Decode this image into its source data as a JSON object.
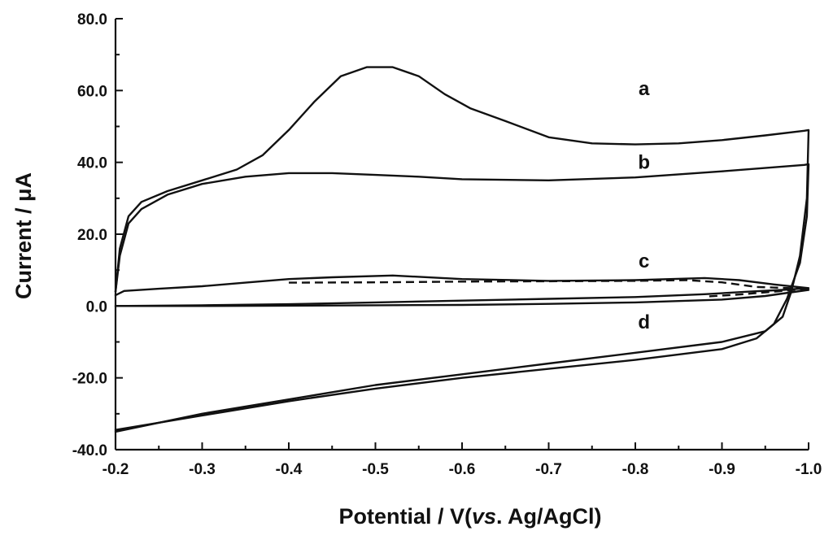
{
  "chart_data": {
    "type": "line",
    "xlabel_main": "Potential / V(",
    "xlabel_italic": "vs",
    "xlabel_tail": ". Ag/AgCl)",
    "ylabel": "Current / μA",
    "xlim": [
      -0.2,
      -1.0
    ],
    "ylim": [
      -40,
      80
    ],
    "x_ticks": [
      -0.2,
      -0.3,
      -0.4,
      -0.5,
      -0.6,
      -0.7,
      -0.8,
      -0.9,
      -1.0
    ],
    "x_tick_labels": [
      "-0.2",
      "-0.3",
      "-0.4",
      "-0.5",
      "-0.6",
      "-0.7",
      "-0.8",
      "-0.9",
      "-1.0"
    ],
    "y_ticks": [
      -40,
      -20,
      0,
      20,
      40,
      60,
      80
    ],
    "y_tick_labels": [
      "-40.0",
      "-20.0",
      "0.0",
      "20.0",
      "40.0",
      "60.0",
      "80.0"
    ],
    "y_minor_ticks": [
      -30,
      -10,
      10,
      30,
      50,
      70
    ],
    "grid": false,
    "legend": "none",
    "series": [
      {
        "name": "a",
        "label_at": [
          -0.81,
          60.5
        ],
        "style": "solid",
        "points": [
          [
            -0.2,
            4
          ],
          [
            -0.205,
            16
          ],
          [
            -0.215,
            25
          ],
          [
            -0.23,
            29
          ],
          [
            -0.26,
            32
          ],
          [
            -0.3,
            35
          ],
          [
            -0.34,
            38
          ],
          [
            -0.37,
            42
          ],
          [
            -0.4,
            49
          ],
          [
            -0.43,
            57
          ],
          [
            -0.46,
            64
          ],
          [
            -0.49,
            66.5
          ],
          [
            -0.52,
            66.5
          ],
          [
            -0.55,
            64
          ],
          [
            -0.58,
            59
          ],
          [
            -0.61,
            55
          ],
          [
            -0.65,
            51.5
          ],
          [
            -0.7,
            47
          ],
          [
            -0.75,
            45.3
          ],
          [
            -0.8,
            45
          ],
          [
            -0.85,
            45.3
          ],
          [
            -0.9,
            46.2
          ],
          [
            -0.95,
            47.5
          ],
          [
            -0.995,
            48.8
          ],
          [
            -1.0,
            49
          ],
          [
            -0.998,
            30
          ],
          [
            -0.99,
            14
          ],
          [
            -0.98,
            4
          ],
          [
            -0.97,
            -3
          ],
          [
            -0.95,
            -7
          ],
          [
            -0.9,
            -10
          ],
          [
            -0.8,
            -13
          ],
          [
            -0.7,
            -16
          ],
          [
            -0.6,
            -19
          ],
          [
            -0.5,
            -22
          ],
          [
            -0.4,
            -26
          ],
          [
            -0.3,
            -30
          ],
          [
            -0.2,
            -35
          ]
        ]
      },
      {
        "name": "b",
        "label_at": [
          -0.81,
          40.0
        ],
        "style": "solid",
        "points": [
          [
            -0.2,
            4
          ],
          [
            -0.205,
            14
          ],
          [
            -0.215,
            23
          ],
          [
            -0.23,
            27
          ],
          [
            -0.26,
            31
          ],
          [
            -0.3,
            34
          ],
          [
            -0.35,
            36
          ],
          [
            -0.4,
            37
          ],
          [
            -0.45,
            37
          ],
          [
            -0.5,
            36.5
          ],
          [
            -0.55,
            36
          ],
          [
            -0.6,
            35.3
          ],
          [
            -0.7,
            35
          ],
          [
            -0.8,
            35.8
          ],
          [
            -0.9,
            37.5
          ],
          [
            -0.995,
            39.3
          ],
          [
            -1.0,
            39.5
          ],
          [
            -0.998,
            25
          ],
          [
            -0.99,
            12
          ],
          [
            -0.975,
            2
          ],
          [
            -0.96,
            -5
          ],
          [
            -0.94,
            -9
          ],
          [
            -0.9,
            -12
          ],
          [
            -0.8,
            -15
          ],
          [
            -0.7,
            -17.5
          ],
          [
            -0.6,
            -20
          ],
          [
            -0.5,
            -23
          ],
          [
            -0.4,
            -26.5
          ],
          [
            -0.3,
            -30.5
          ],
          [
            -0.2,
            -34.5
          ]
        ]
      },
      {
        "name": "c",
        "label_at": [
          -0.81,
          12.5
        ],
        "style": "solid",
        "points": [
          [
            -0.2,
            3
          ],
          [
            -0.21,
            4.2
          ],
          [
            -0.25,
            4.8
          ],
          [
            -0.3,
            5.5
          ],
          [
            -0.35,
            6.5
          ],
          [
            -0.4,
            7.5
          ],
          [
            -0.45,
            8
          ],
          [
            -0.52,
            8.5
          ],
          [
            -0.6,
            7.5
          ],
          [
            -0.7,
            7
          ],
          [
            -0.8,
            7.2
          ],
          [
            -0.88,
            7.8
          ],
          [
            -0.92,
            7.2
          ],
          [
            -0.96,
            6
          ],
          [
            -1.0,
            5
          ],
          [
            -0.97,
            4.5
          ],
          [
            -0.93,
            4
          ],
          [
            -0.88,
            3.3
          ],
          [
            -0.8,
            2.5
          ],
          [
            -0.7,
            2
          ],
          [
            -0.6,
            1.5
          ],
          [
            -0.5,
            1
          ],
          [
            -0.4,
            0.5
          ],
          [
            -0.3,
            0.2
          ],
          [
            -0.2,
            0
          ]
        ]
      },
      {
        "name": "c-dashed",
        "style": "dashed",
        "points": [
          [
            -0.4,
            6.5
          ],
          [
            -0.5,
            6.6
          ],
          [
            -0.6,
            6.8
          ],
          [
            -0.7,
            6.9
          ],
          [
            -0.8,
            7
          ],
          [
            -0.86,
            7.2
          ],
          [
            -0.9,
            6.6
          ],
          [
            -0.94,
            5.3
          ],
          [
            -1.0,
            4.8
          ],
          [
            -0.96,
            4
          ],
          [
            -0.92,
            3.2
          ],
          [
            -0.88,
            2.6
          ]
        ]
      },
      {
        "name": "d",
        "label_at": [
          -0.81,
          -4.5
        ],
        "style": "solid",
        "points": [
          [
            -0.2,
            0
          ],
          [
            -0.3,
            0
          ],
          [
            -0.4,
            0.1
          ],
          [
            -0.5,
            0.2
          ],
          [
            -0.6,
            0.3
          ],
          [
            -0.7,
            0.6
          ],
          [
            -0.8,
            1
          ],
          [
            -0.9,
            1.8
          ],
          [
            -0.95,
            2.8
          ],
          [
            -1.0,
            4.5
          ]
        ]
      }
    ]
  }
}
